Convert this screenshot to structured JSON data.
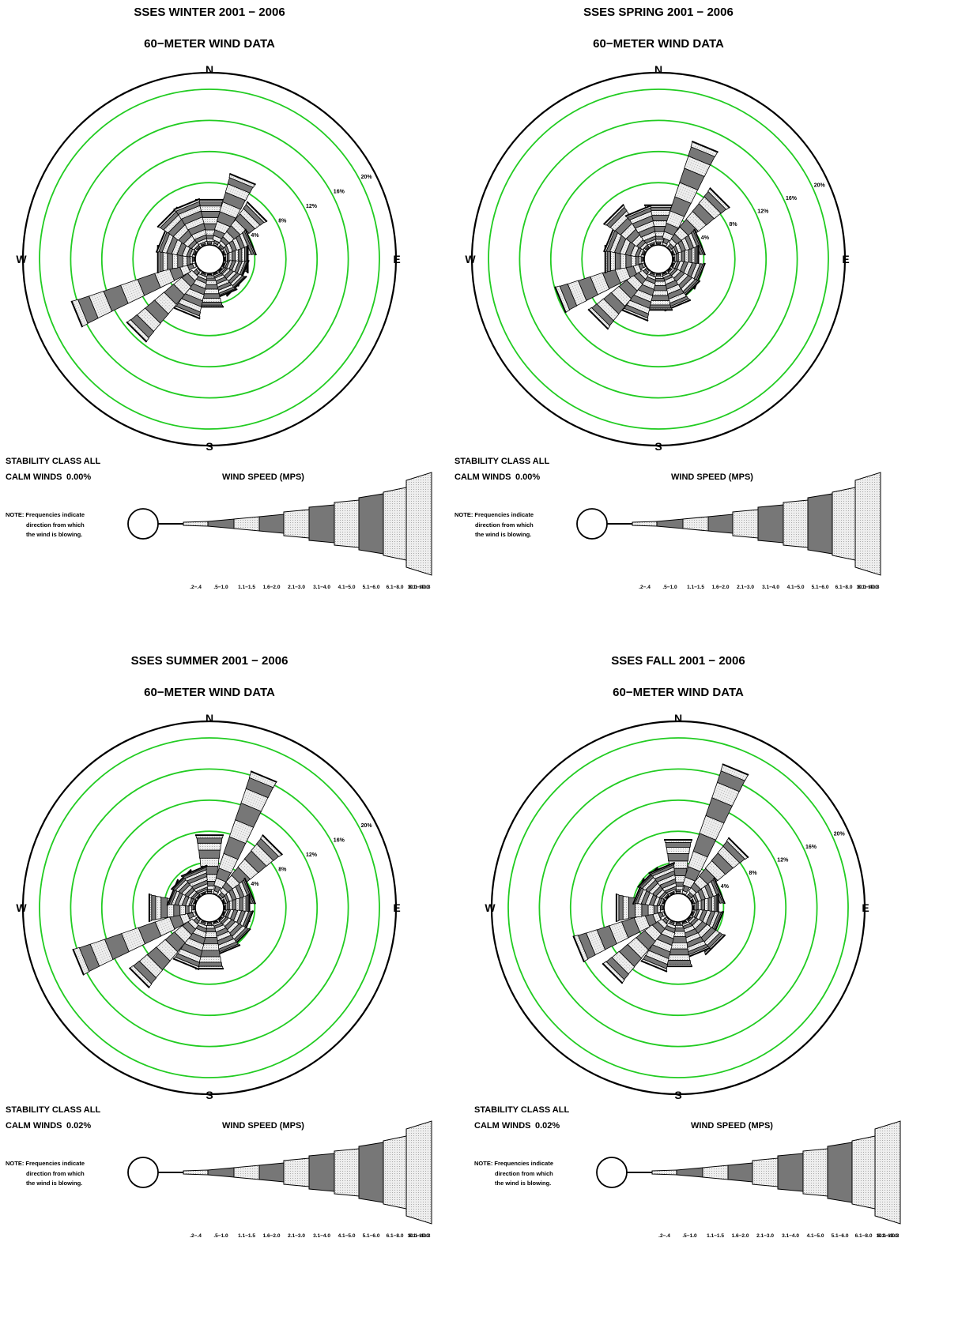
{
  "panels": [
    {
      "id": "winter",
      "title": "SSES WINTER 2001 − 2006",
      "subtitle": "60−METER WIND DATA",
      "stability": "STABILITY CLASS ALL",
      "calm_label": "CALM WINDS",
      "calm_value": "0.00%",
      "legend_title": "WIND SPEED (MPS)",
      "note": [
        "NOTE:  Frequencies indicate",
        "direction from which",
        "the wind is blowing."
      ]
    },
    {
      "id": "spring",
      "title": "SSES SPRING 2001 − 2006",
      "subtitle": "60−METER WIND DATA",
      "stability": "STABILITY CLASS ALL",
      "calm_label": "CALM WINDS",
      "calm_value": "0.00%",
      "legend_title": "WIND SPEED (MPS)",
      "note": [
        "NOTE:  Frequencies indicate",
        "direction from which",
        "the wind is blowing."
      ]
    },
    {
      "id": "summer",
      "title": "SSES SUMMER 2001 − 2006",
      "subtitle": "60−METER WIND DATA",
      "stability": "STABILITY CLASS ALL",
      "calm_label": "CALM WINDS",
      "calm_value": "0.02%",
      "legend_title": "WIND SPEED (MPS)",
      "note": [
        "NOTE:  Frequencies indicate",
        "direction from which",
        "the wind is blowing."
      ]
    },
    {
      "id": "fall",
      "title": "SSES FALL 2001 − 2006",
      "subtitle": "60−METER WIND DATA",
      "stability": "STABILITY CLASS ALL",
      "calm_label": "CALM WINDS",
      "calm_value": "0.02%",
      "legend_title": "WIND SPEED (MPS)",
      "note": [
        "NOTE:  Frequencies indicate",
        "direction from which",
        "the wind is blowing."
      ]
    }
  ],
  "compass": {
    "n": "N",
    "e": "E",
    "s": "S",
    "w": "W"
  },
  "ring_labels": [
    "4%",
    "8%",
    "12%",
    "16%",
    "20%"
  ],
  "colors": {
    "ring": "#22cc22",
    "outline": "#000000",
    "dark": "#777777",
    "light": "#eeeeee",
    "dots": "#9a9a9a"
  },
  "chart_data": [
    {
      "type": "wind-rose",
      "title": "SSES WINTER 2001 − 2006",
      "subtitle": "60−METER WIND DATA",
      "directions": [
        "N",
        "NNE",
        "NE",
        "ENE",
        "E",
        "ESE",
        "SE",
        "SSE",
        "S",
        "SSW",
        "SW",
        "WSW",
        "W",
        "WNW",
        "NW",
        "NNW"
      ],
      "frequency_percent": [
        5.7,
        9.2,
        6.7,
        3.8,
        3.0,
        2.8,
        3.0,
        3.0,
        4.2,
        5.6,
        11.3,
        16.5,
        4.7,
        4.7,
        5.7,
        5.7
      ],
      "speed_bins": [
        ".2−.4",
        ".5−1.0",
        "1.1−1.5",
        "1.6−2.0",
        "2.1−3.0",
        "3.1−4.0",
        "4.1−5.0",
        "5.1−6.0",
        "6.1−8.0",
        "8.1−10.0",
        "10.1−40.3"
      ],
      "rings_percent": [
        4,
        8,
        12,
        16,
        20
      ],
      "calm_percent": 0.0
    },
    {
      "type": "wind-rose",
      "title": "SSES SPRING 2001 − 2006",
      "subtitle": "60−METER WIND DATA",
      "directions": [
        "N",
        "NNE",
        "NE",
        "ENE",
        "E",
        "ESE",
        "SE",
        "SSE",
        "S",
        "SSW",
        "SW",
        "WSW",
        "W",
        "WNW",
        "NW",
        "NNW"
      ],
      "frequency_percent": [
        5.0,
        13.7,
        9.2,
        3.8,
        3.2,
        3.8,
        3.8,
        4.5,
        4.6,
        5.9,
        9.0,
        11.7,
        4.9,
        4.9,
        6.2,
        4.8
      ],
      "speed_bins": [
        ".2−.4",
        ".5−1.0",
        "1.1−1.5",
        "1.6−2.0",
        "2.1−3.0",
        "3.1−4.0",
        "4.1−5.0",
        "5.1−6.0",
        "6.1−8.0",
        "8.1−10.0",
        "10.1−40.3"
      ],
      "rings_percent": [
        4,
        8,
        12,
        16,
        20
      ],
      "calm_percent": 0.0
    },
    {
      "type": "wind-rose",
      "title": "SSES SUMMER 2001 − 2006",
      "subtitle": "60−METER WIND DATA",
      "directions": [
        "N",
        "NNE",
        "NE",
        "ENE",
        "E",
        "ESE",
        "SE",
        "SSE",
        "S",
        "SSW",
        "SW",
        "WSW",
        "W",
        "WNW",
        "NW",
        "NNW"
      ],
      "frequency_percent": [
        7.4,
        16.3,
        9.5,
        3.7,
        3.2,
        3.4,
        3.7,
        4.0,
        5.9,
        5.9,
        10.8,
        16.3,
        5.8,
        3.2,
        3.2,
        3.2
      ],
      "speed_bins": [
        ".2−.4",
        ".5−1.0",
        "1.1−1.5",
        "1.6−2.0",
        "2.1−3.0",
        "3.1−4.0",
        "4.1−5.0",
        "5.1−6.0",
        "6.1−8.0",
        "8.1−10.0",
        "10.1−40.3"
      ],
      "rings_percent": [
        4,
        8,
        12,
        16,
        20
      ],
      "calm_percent": 0.02
    },
    {
      "type": "wind-rose",
      "title": "SSES FALL 2001 − 2006",
      "subtitle": "60−METER WIND DATA",
      "directions": [
        "N",
        "NNE",
        "NE",
        "ENE",
        "E",
        "ESE",
        "SE",
        "SSE",
        "S",
        "SSW",
        "SW",
        "WSW",
        "W",
        "WNW",
        "NW",
        "NNW"
      ],
      "frequency_percent": [
        6.8,
        17.3,
        9.0,
        3.8,
        3.2,
        3.6,
        4.8,
        4.4,
        5.6,
        6.2,
        10.0,
        11.9,
        6.0,
        3.6,
        3.6,
        3.6
      ],
      "speed_bins": [
        ".2−.4",
        ".5−1.0",
        "1.1−1.5",
        "1.6−2.0",
        "2.1−3.0",
        "3.1−4.0",
        "4.1−5.0",
        "5.1−6.0",
        "6.1−8.0",
        "8.1−10.0",
        "10.1−40.3"
      ],
      "rings_percent": [
        4,
        8,
        12,
        16,
        20
      ],
      "calm_percent": 0.02
    }
  ]
}
